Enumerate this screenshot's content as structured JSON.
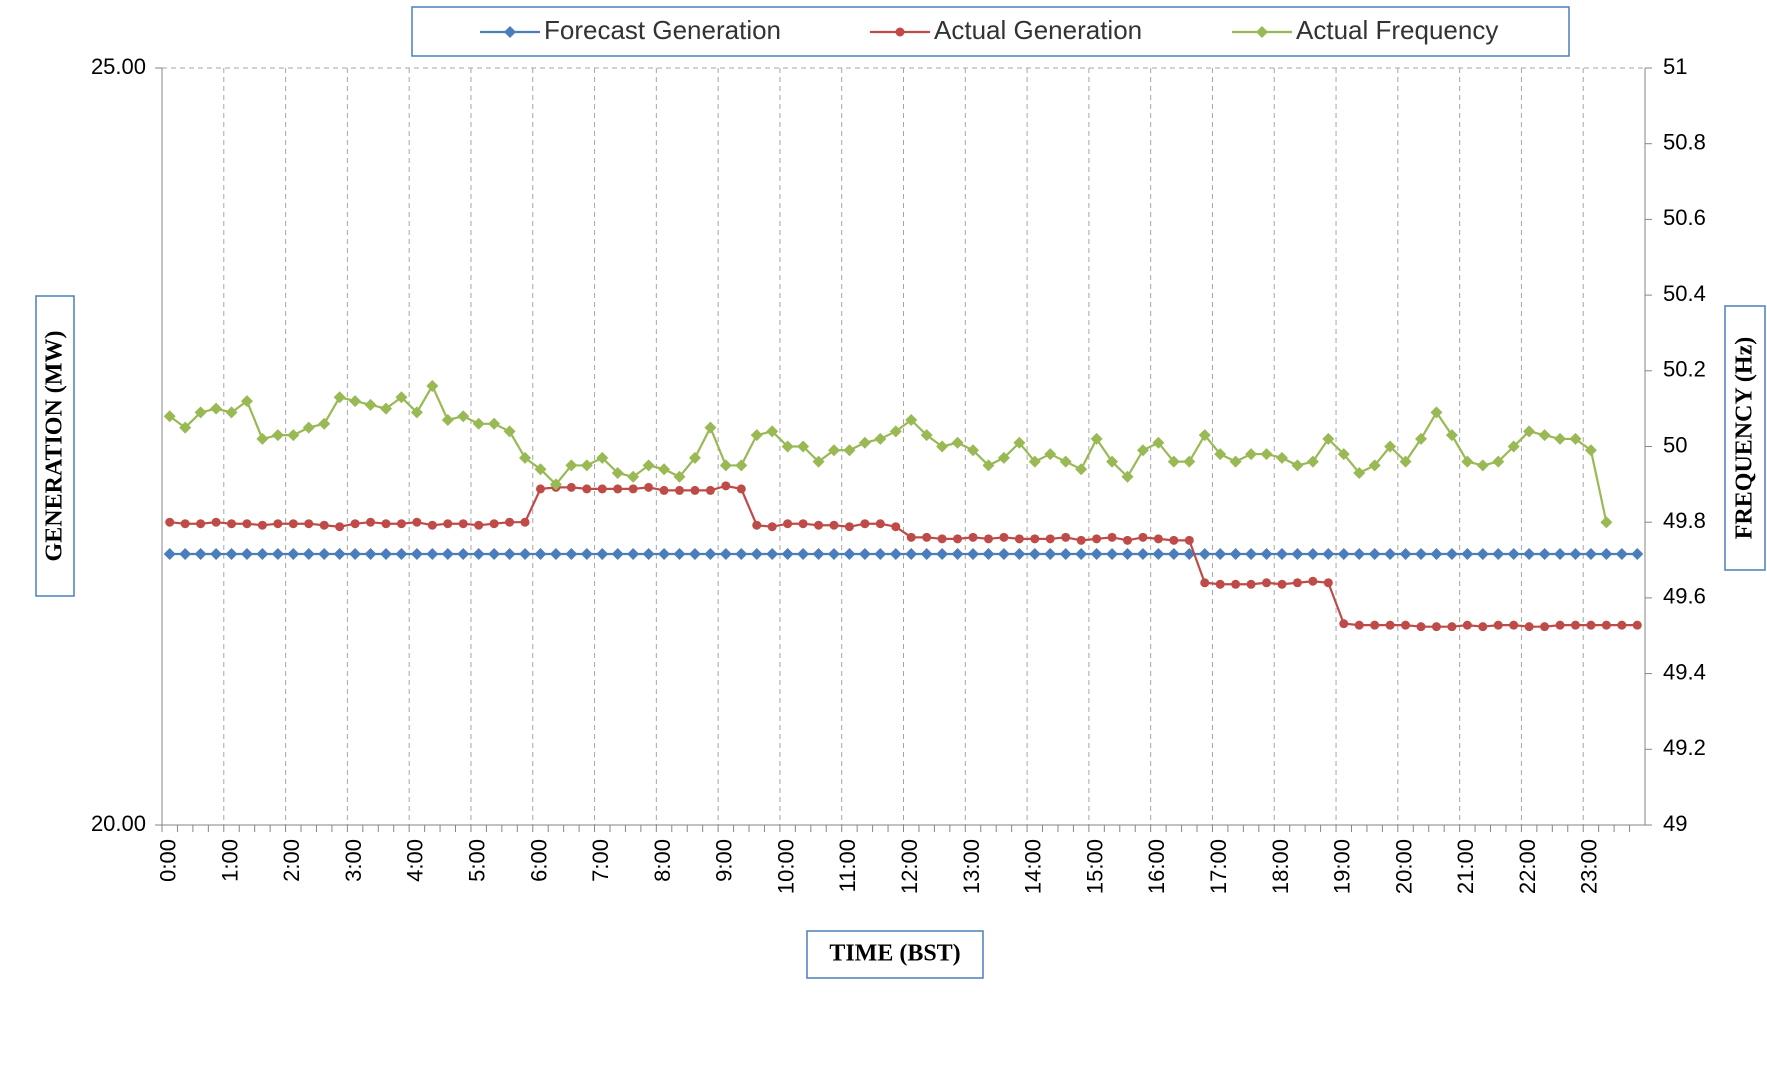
{
  "chart_data": {
    "type": "line",
    "x_label": "TIME (BST)",
    "y_label": "GENERATION (MW)",
    "y2_label": "FREQUENCY (Hz)",
    "categories": [
      "0:00",
      null,
      null,
      null,
      "1:00",
      null,
      null,
      null,
      "2:00",
      null,
      null,
      null,
      "3:00",
      null,
      null,
      null,
      "4:00",
      null,
      null,
      null,
      "5:00",
      null,
      null,
      null,
      "6:00",
      null,
      null,
      null,
      "7:00",
      null,
      null,
      null,
      "8:00",
      null,
      null,
      null,
      "9:00",
      null,
      null,
      null,
      "10:00",
      null,
      null,
      null,
      "11:00",
      null,
      null,
      null,
      "12:00",
      null,
      null,
      null,
      "13:00",
      null,
      null,
      null,
      "14:00",
      null,
      null,
      null,
      "15:00",
      null,
      null,
      null,
      "16:00",
      null,
      null,
      null,
      "17:00",
      null,
      null,
      null,
      "18:00",
      null,
      null,
      null,
      "19:00",
      null,
      null,
      null,
      "20:00",
      null,
      null,
      null,
      "21:00",
      null,
      null,
      null,
      "22:00",
      null,
      null,
      null,
      "23:00",
      null,
      null,
      null
    ],
    "series": [
      {
        "name": "Forecast Generation",
        "color": "#4a7ebb",
        "marker": "diamond",
        "values": [
          21.79,
          21.79,
          21.79,
          21.79,
          21.79,
          21.79,
          21.79,
          21.79,
          21.79,
          21.79,
          21.79,
          21.79,
          21.79,
          21.79,
          21.79,
          21.79,
          21.79,
          21.79,
          21.79,
          21.79,
          21.79,
          21.79,
          21.79,
          21.79,
          21.79,
          21.79,
          21.79,
          21.79,
          21.79,
          21.79,
          21.79,
          21.79,
          21.79,
          21.79,
          21.79,
          21.79,
          21.79,
          21.79,
          21.79,
          21.79,
          21.79,
          21.79,
          21.79,
          21.79,
          21.79,
          21.79,
          21.79,
          21.79,
          21.79,
          21.79,
          21.79,
          21.79,
          21.79,
          21.79,
          21.79,
          21.79,
          21.79,
          21.79,
          21.79,
          21.79,
          21.79,
          21.79,
          21.79,
          21.79,
          21.79,
          21.79,
          21.79,
          21.79,
          21.79,
          21.79,
          21.79,
          21.79,
          21.79,
          21.79,
          21.79,
          21.79,
          21.79,
          21.79,
          21.79,
          21.79,
          21.79,
          21.79,
          21.79,
          21.79,
          21.79,
          21.79,
          21.79,
          21.79,
          21.79,
          21.79,
          21.79,
          21.79,
          21.79,
          21.79,
          21.79,
          21.79
        ]
      },
      {
        "name": "Actual Generation",
        "color": "#be4b48",
        "marker": "circle",
        "values": [
          22.0,
          21.99,
          21.99,
          22.0,
          21.99,
          21.99,
          21.98,
          21.99,
          21.99,
          21.99,
          21.98,
          21.97,
          21.99,
          22.0,
          21.99,
          21.99,
          22.0,
          21.98,
          21.99,
          21.99,
          21.98,
          21.99,
          22.0,
          22.0,
          22.22,
          22.23,
          22.23,
          22.22,
          22.22,
          22.22,
          22.22,
          22.23,
          22.21,
          22.21,
          22.21,
          22.21,
          22.24,
          22.22,
          21.98,
          21.97,
          21.99,
          21.99,
          21.98,
          21.98,
          21.97,
          21.99,
          21.99,
          21.97,
          21.9,
          21.9,
          21.89,
          21.89,
          21.9,
          21.89,
          21.9,
          21.89,
          21.89,
          21.89,
          21.9,
          21.88,
          21.89,
          21.9,
          21.88,
          21.9,
          21.89,
          21.88,
          21.88,
          21.6,
          21.59,
          21.59,
          21.59,
          21.6,
          21.59,
          21.6,
          21.61,
          21.6,
          21.33,
          21.32,
          21.32,
          21.32,
          21.32,
          21.31,
          21.31,
          21.31,
          21.32,
          21.31,
          21.32,
          21.32,
          21.31,
          21.31,
          21.32,
          21.32,
          21.32,
          21.32,
          21.32,
          21.32
        ]
      },
      {
        "name": "Actual Frequency",
        "color": "#98b954",
        "marker": "diamond",
        "axis": "y2",
        "values": [
          50.08,
          50.05,
          50.09,
          50.1,
          50.09,
          50.12,
          50.02,
          50.03,
          50.03,
          50.05,
          50.06,
          50.13,
          50.12,
          50.11,
          50.1,
          50.13,
          50.09,
          50.16,
          50.07,
          50.08,
          50.06,
          50.06,
          50.04,
          49.97,
          49.94,
          49.9,
          49.95,
          49.95,
          49.97,
          49.93,
          49.92,
          49.95,
          49.94,
          49.92,
          49.97,
          50.05,
          49.95,
          49.95,
          50.03,
          50.04,
          50.0,
          50.0,
          49.96,
          49.99,
          49.99,
          50.01,
          50.02,
          50.04,
          50.07,
          50.03,
          50.0,
          50.01,
          49.99,
          49.95,
          49.97,
          50.01,
          49.96,
          49.98,
          49.96,
          49.94,
          50.02,
          49.96,
          49.92,
          49.99,
          50.01,
          49.96,
          49.96,
          50.03,
          49.98,
          49.96,
          49.98,
          49.98,
          49.97,
          49.95,
          49.96,
          50.02,
          49.98,
          49.93,
          49.95,
          50.0,
          49.96,
          50.02,
          50.09,
          50.03,
          49.96,
          49.95,
          49.96,
          50.0,
          50.04,
          50.03,
          50.02,
          50.02,
          49.99,
          49.8,
          null,
          null
        ]
      }
    ],
    "ylim": [
      20,
      25
    ],
    "yticks": [
      {
        "value": 20,
        "label": "20.00"
      },
      {
        "value": 25,
        "label": "25.00"
      }
    ],
    "y2lim": [
      49,
      51
    ],
    "y2ticks": [
      49,
      49.2,
      49.4,
      49.6,
      49.8,
      50,
      50.2,
      50.4,
      50.6,
      50.8,
      51
    ],
    "grid": true,
    "legend": "top"
  }
}
